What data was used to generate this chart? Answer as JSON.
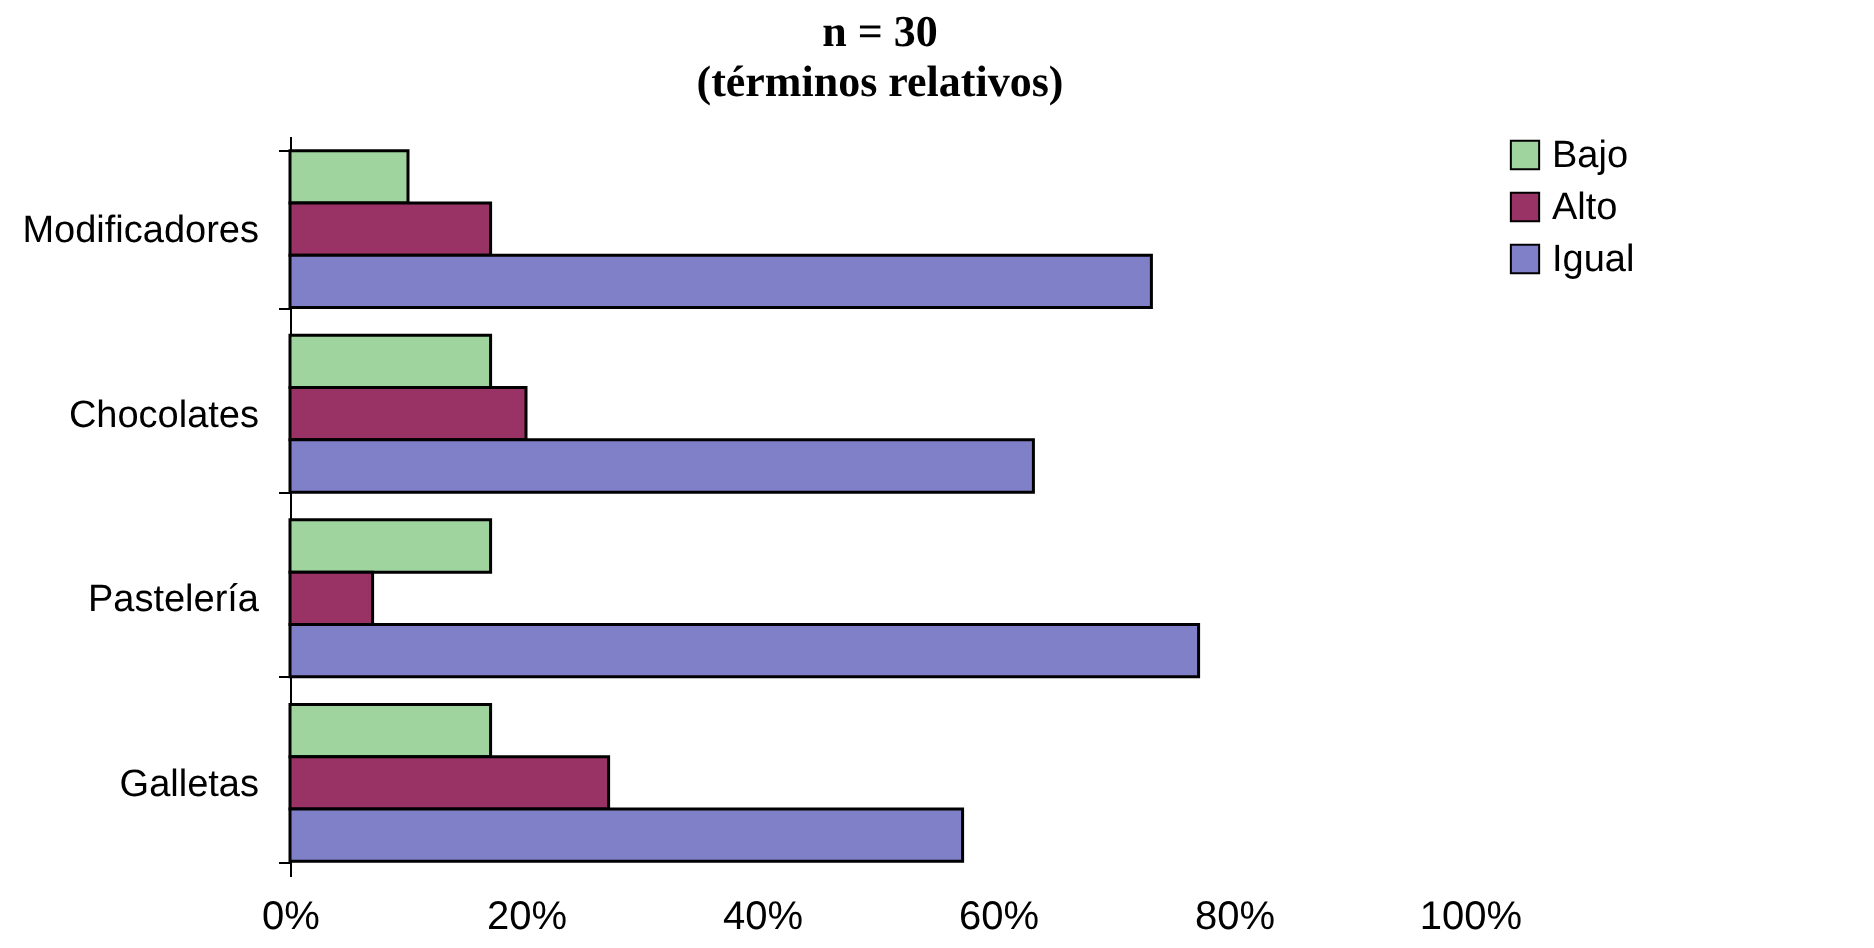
{
  "chart_data": {
    "type": "bar",
    "orientation": "horizontal",
    "title": "n = 30",
    "subtitle": "(términos relativos)",
    "categories": [
      "Modificadores",
      "Chocolates",
      "Pastelería",
      "Galletas"
    ],
    "series": [
      {
        "name": "Bajo",
        "color": "#9fd49f",
        "values": [
          10,
          17,
          17,
          17
        ]
      },
      {
        "name": "Alto",
        "color": "#993366",
        "values": [
          17,
          20,
          7,
          27
        ]
      },
      {
        "name": "Igual",
        "color": "#8080c8",
        "values": [
          73,
          63,
          77,
          57
        ]
      }
    ],
    "xlim": [
      0,
      100
    ],
    "xticks": [
      {
        "value": 0,
        "label": "0%"
      },
      {
        "value": 20,
        "label": "20%"
      },
      {
        "value": 40,
        "label": "40%"
      },
      {
        "value": 60,
        "label": "60%"
      },
      {
        "value": 80,
        "label": "80%"
      },
      {
        "value": 100,
        "label": "100%"
      }
    ],
    "grid": false,
    "legend": "right"
  }
}
